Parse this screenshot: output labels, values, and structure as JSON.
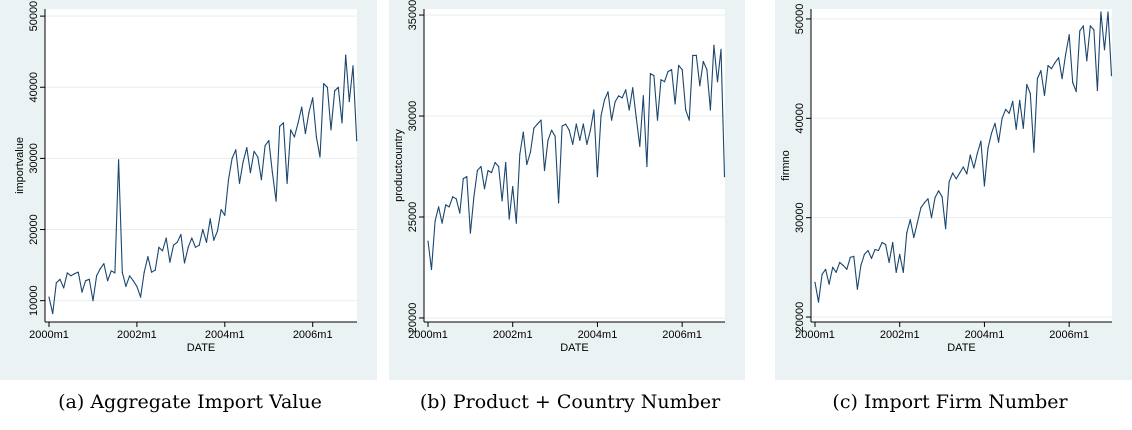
{
  "chart_data": [
    {
      "type": "line",
      "caption_label": "(a)",
      "caption": "Aggregate Import Value",
      "xlabel": "DATE",
      "ylabel": "importvalue",
      "xticks": [
        "2000m1",
        "2002m1",
        "2004m1",
        "2006m1"
      ],
      "yticks": [
        "10000",
        "20000",
        "30000",
        "40000",
        "50000"
      ],
      "xlim": [
        0,
        83
      ],
      "ylim": [
        7000,
        51000
      ],
      "grid": true,
      "x_start": "2000m1",
      "x_step": "month",
      "values": [
        10500,
        8200,
        12500,
        13000,
        11800,
        13900,
        13500,
        13800,
        14000,
        11200,
        12800,
        13000,
        10000,
        13500,
        14500,
        15200,
        12800,
        14200,
        13900,
        29800,
        14000,
        12000,
        13500,
        12800,
        12000,
        10500,
        14000,
        16200,
        14000,
        14300,
        17500,
        17000,
        18800,
        15400,
        17800,
        18200,
        19300,
        15300,
        17500,
        18800,
        17500,
        17800,
        20000,
        18200,
        21500,
        18500,
        19800,
        22800,
        22000,
        27000,
        30000,
        31200,
        26500,
        29500,
        31500,
        28000,
        31000,
        30200,
        27000,
        31800,
        32500,
        28000,
        24000,
        34500,
        35000,
        26500,
        34000,
        33000,
        35000,
        37200,
        33500,
        36500,
        38500,
        33000,
        30200,
        40500,
        40000,
        34000,
        39500,
        40000,
        35000,
        44500,
        38000,
        43000,
        32500
      ]
    },
    {
      "type": "line",
      "caption_label": "(b)",
      "caption": "Product + Country Number",
      "xlabel": "DATE",
      "ylabel": "productcountry",
      "xticks": [
        "2000m1",
        "2002m1",
        "2004m1",
        "2006m1"
      ],
      "yticks": [
        "20000",
        "25000",
        "30000",
        "35000"
      ],
      "xlim": [
        0,
        83
      ],
      "ylim": [
        19800,
        35300
      ],
      "grid": true,
      "x_start": "2000m1",
      "x_step": "month",
      "values": [
        23800,
        22400,
        24800,
        25500,
        24700,
        25600,
        25500,
        26000,
        25900,
        25200,
        26900,
        27000,
        24200,
        26000,
        27300,
        27500,
        26400,
        27300,
        27200,
        27700,
        27500,
        25800,
        27700,
        24900,
        26500,
        24700,
        28100,
        29200,
        27600,
        28200,
        29400,
        29600,
        29800,
        27300,
        28800,
        29300,
        29000,
        25700,
        29500,
        29600,
        29300,
        28600,
        29600,
        28800,
        29600,
        28600,
        29300,
        30300,
        27000,
        30000,
        30800,
        31200,
        29800,
        30700,
        31000,
        30900,
        31300,
        30300,
        31400,
        29900,
        28500,
        31000,
        27500,
        32100,
        32000,
        29800,
        31800,
        31700,
        32200,
        32300,
        30600,
        32500,
        32300,
        30300,
        29800,
        33000,
        33000,
        31500,
        32700,
        32300,
        30300,
        33500,
        31700,
        33300,
        27000
      ]
    },
    {
      "type": "line",
      "caption_label": "(c)",
      "caption": "Import Firm Number",
      "xlabel": "DATE",
      "ylabel": "firmno",
      "xticks": [
        "2000m1",
        "2002m1",
        "2004m1",
        "2006m1"
      ],
      "yticks": [
        "20000",
        "30000",
        "40000",
        "50000"
      ],
      "xlim": [
        0,
        83
      ],
      "ylim": [
        19500,
        51000
      ],
      "grid": true,
      "x_start": "2000m1",
      "x_step": "month",
      "values": [
        23500,
        21500,
        24300,
        24800,
        23300,
        25000,
        24500,
        25500,
        25200,
        24800,
        26000,
        26100,
        22800,
        25200,
        26300,
        26700,
        25900,
        26800,
        26700,
        27500,
        27300,
        25500,
        27500,
        24500,
        26300,
        24500,
        28500,
        29800,
        28000,
        29500,
        31000,
        31500,
        31900,
        30000,
        32000,
        32700,
        32100,
        28900,
        33600,
        34500,
        33900,
        34500,
        35100,
        34400,
        36300,
        35000,
        36500,
        37700,
        33200,
        37000,
        38500,
        39500,
        37600,
        40000,
        40900,
        40500,
        41700,
        38900,
        41800,
        39000,
        43400,
        42500,
        36600,
        44000,
        44800,
        42300,
        45300,
        45000,
        45600,
        46100,
        44000,
        46400,
        48400,
        43600,
        42700,
        48800,
        49300,
        45800,
        49300,
        48900,
        42800,
        50700,
        46900,
        50700,
        44300
      ]
    }
  ]
}
